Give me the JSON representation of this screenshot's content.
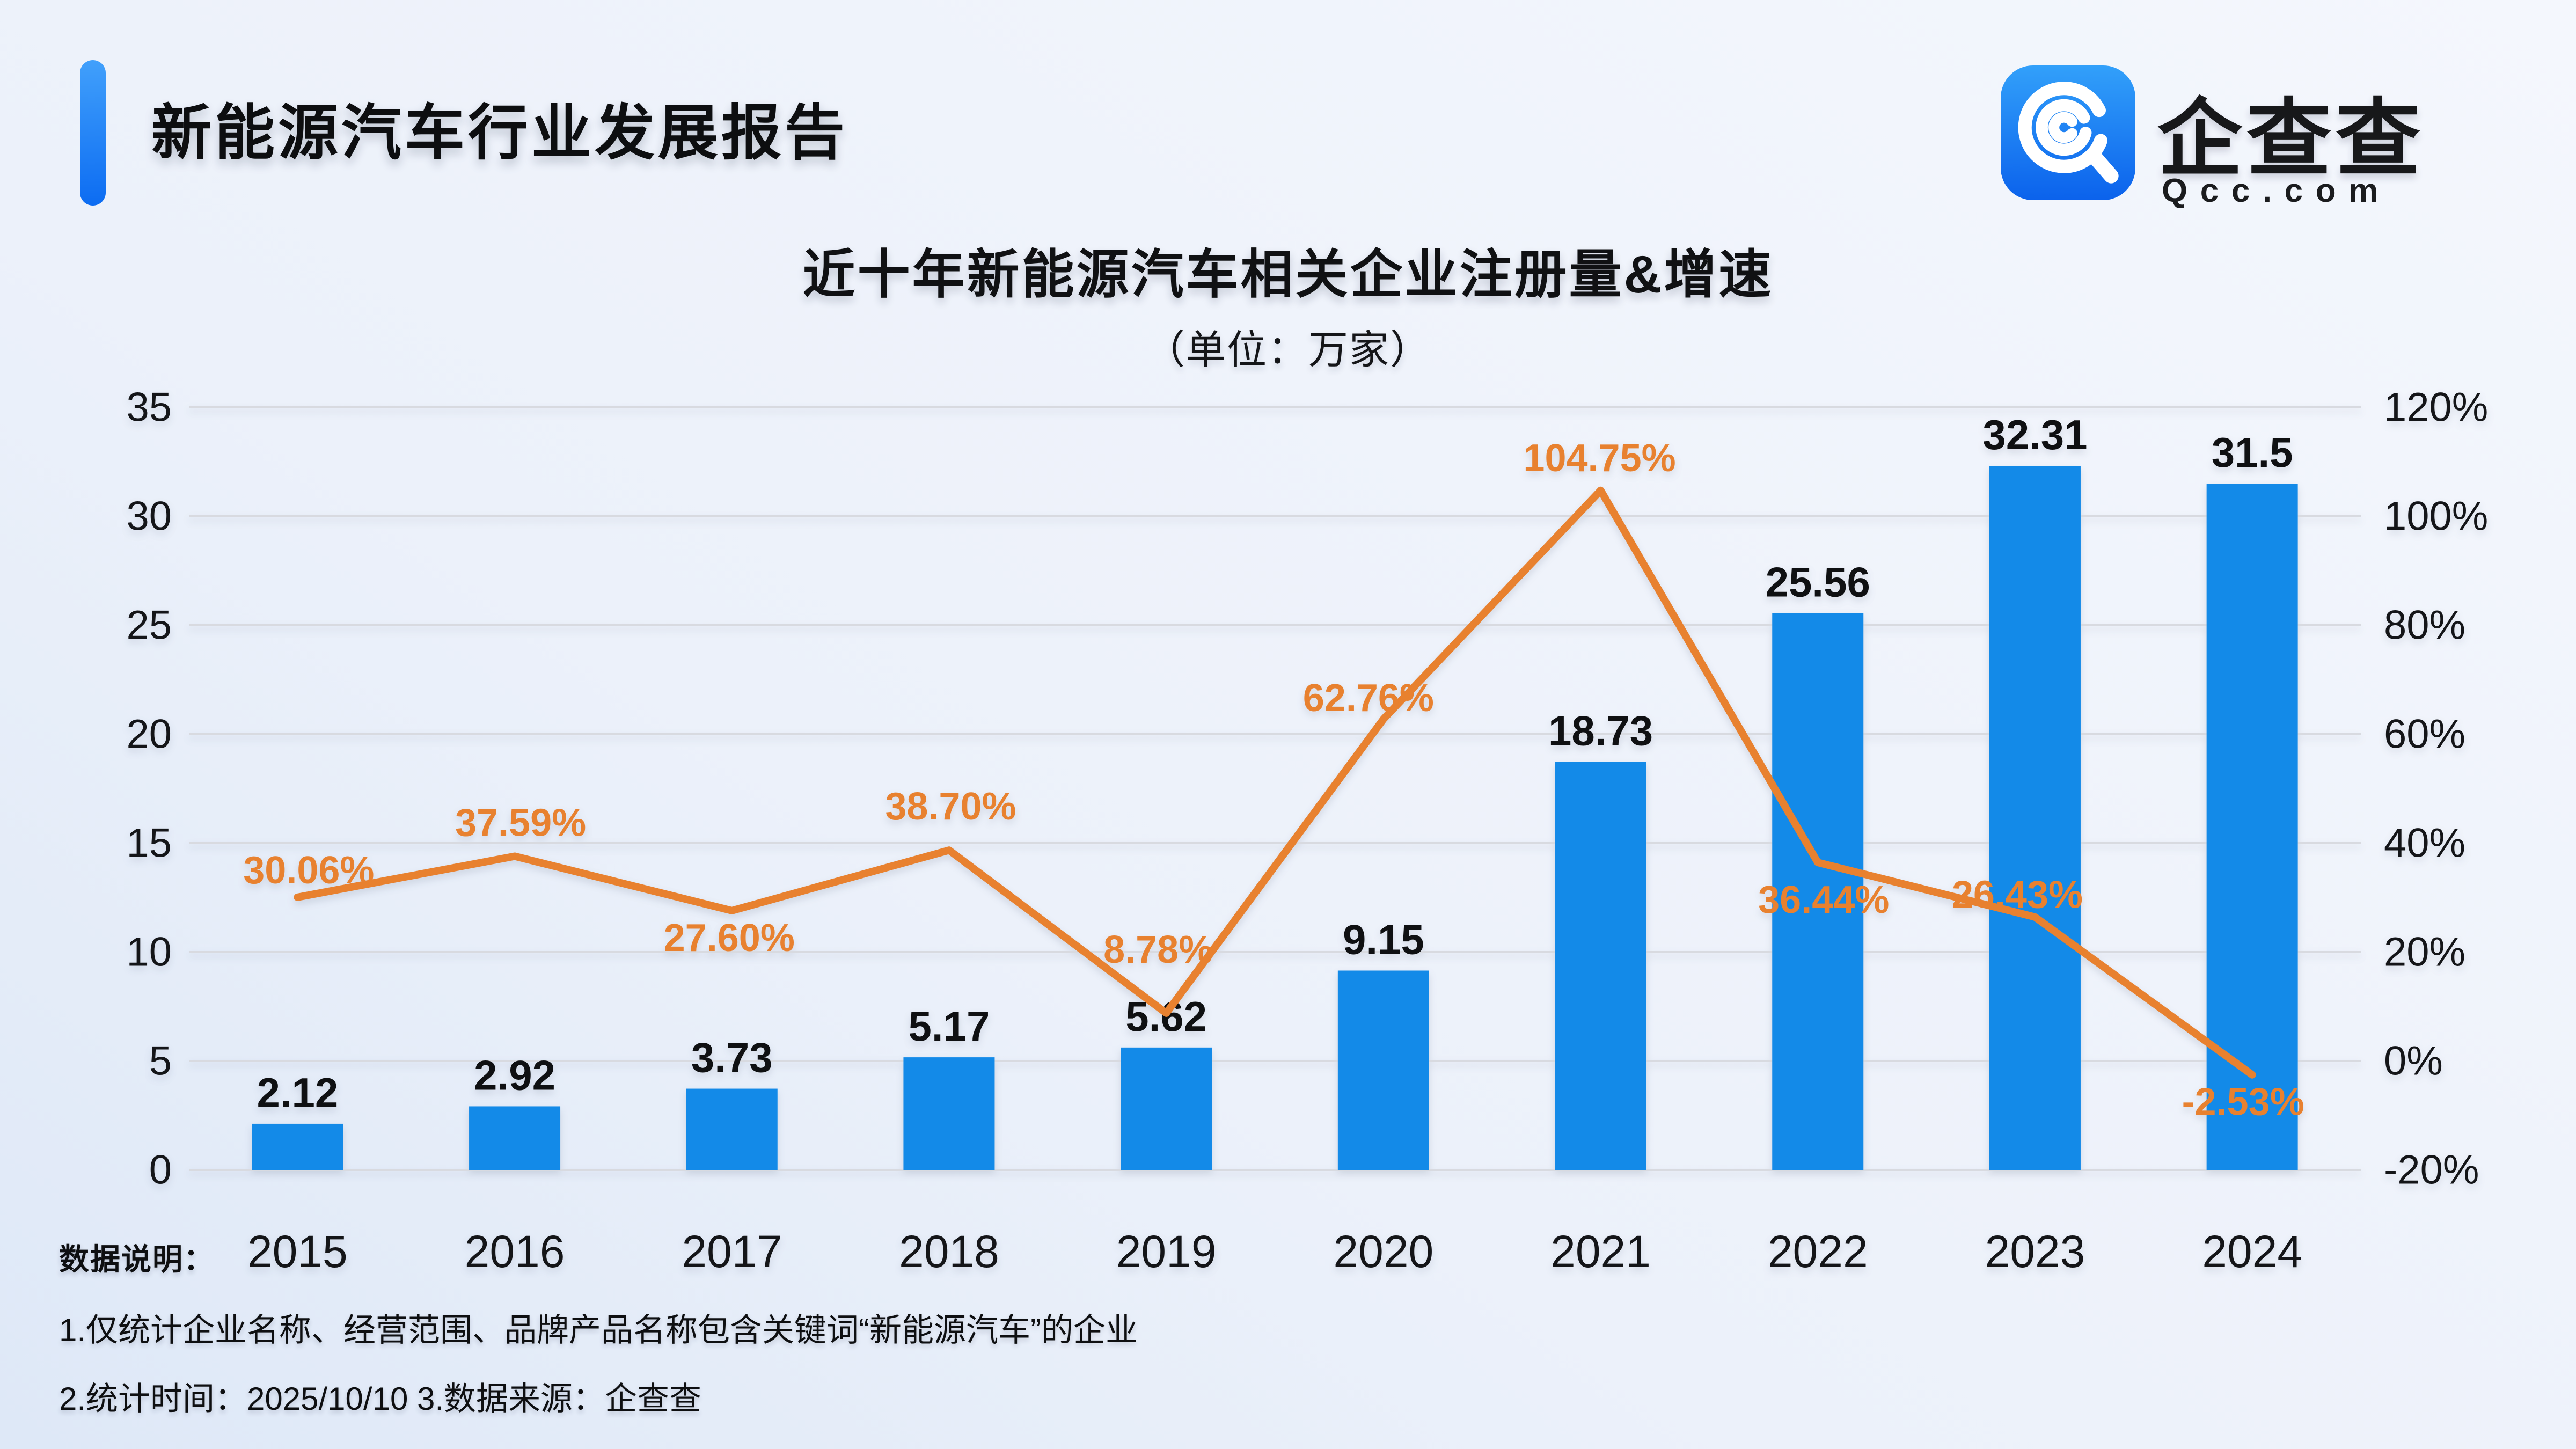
{
  "header": {
    "title": "新能源汽车行业发展报告"
  },
  "logo": {
    "name": "企查查",
    "domain": "Qcc.com"
  },
  "chart": {
    "title": "近十年新能源汽车相关企业注册量&增速",
    "subtitle": "（单位：万家）"
  },
  "chart_data": {
    "type": "bar+line",
    "title": "近十年新能源汽车相关企业注册量&增速",
    "subtitle": "（单位：万家）",
    "unit": "万家",
    "categories": [
      "2015",
      "2016",
      "2017",
      "2018",
      "2019",
      "2020",
      "2021",
      "2022",
      "2023",
      "2024"
    ],
    "series": [
      {
        "type": "bar",
        "values": [
          2.12,
          2.92,
          3.73,
          5.17,
          5.62,
          9.15,
          18.73,
          25.56,
          32.31,
          31.5
        ],
        "labels": [
          "2.12",
          "2.92",
          "3.73",
          "5.17",
          "5.62",
          "9.15",
          "18.73",
          "25.56",
          "32.31",
          "31.5"
        ],
        "axis": "left"
      },
      {
        "type": "line",
        "values": [
          30.06,
          37.59,
          27.6,
          38.7,
          8.78,
          62.76,
          104.75,
          36.44,
          26.43,
          -2.53
        ],
        "labels": [
          "30.06%",
          "37.59%",
          "27.60%",
          "38.70%",
          "8.78%",
          "62.76%",
          "104.75%",
          "36.44%",
          "26.43%",
          "-2.53%"
        ],
        "axis": "right"
      }
    ],
    "left_axis": {
      "ylim": [
        0,
        35
      ],
      "tick_labels": [
        "35",
        "30",
        "25",
        "20",
        "15",
        "10",
        "5",
        "0"
      ]
    },
    "right_axis": {
      "ylim": [
        -20,
        120
      ],
      "tick_labels": [
        "120%",
        "100%",
        "80%",
        "60%",
        "40%",
        "20%",
        "0%",
        "-20%"
      ]
    },
    "grid": true,
    "legend": "none",
    "colors": {
      "bar": "#138AE8",
      "line": "#E8812F",
      "bar_label": "#0F1012",
      "axis_text": "#141518",
      "gridline": "#D8DAE0",
      "accent": "#1B7CF5",
      "logo_blue_top": "#32A0FA",
      "logo_blue_bottom": "#0B62EC"
    }
  },
  "notes": {
    "heading": "数据说明：",
    "line1": "1.仅统计企业名称、经营范围、品牌产品名称包含关键词“新能源汽车”的企业",
    "line2": "2.统计时间：2025/10/10   3.数据来源：企查查"
  }
}
